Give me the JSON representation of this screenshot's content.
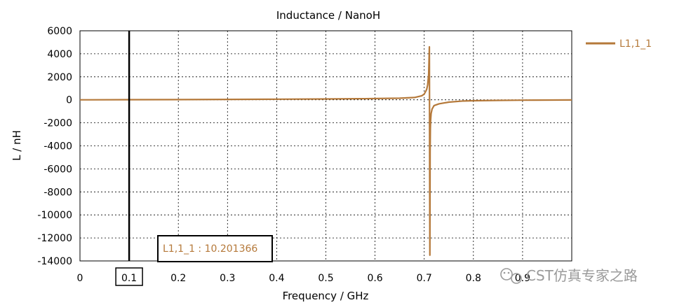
{
  "chart_data": {
    "type": "line",
    "title": "Inductance / NanoH",
    "xlabel": "Frequency / GHz",
    "ylabel": "L / nH",
    "xlim": [
      0,
      1.0
    ],
    "ylim": [
      -14000,
      6000
    ],
    "xticks": [
      "0",
      "0.1",
      "0.2",
      "0.3",
      "0.4",
      "0.5",
      "0.6",
      "0.7",
      "0.8",
      "0.9"
    ],
    "yticks": [
      "6000",
      "4000",
      "2000",
      "0",
      "-2000",
      "-4000",
      "-6000",
      "-8000",
      "-10000",
      "-12000",
      "-14000"
    ],
    "grid": true,
    "legend_position": "right",
    "series": [
      {
        "name": "L1,1_1",
        "color": "#b5793a",
        "x": [
          0,
          0.1,
          0.2,
          0.3,
          0.4,
          0.5,
          0.58,
          0.6,
          0.65,
          0.68,
          0.695,
          0.7,
          0.705,
          0.707,
          0.709,
          0.7105,
          0.7115,
          0.712,
          0.7125,
          0.713,
          0.714,
          0.716,
          0.72,
          0.73,
          0.75,
          0.78,
          0.8,
          0.85,
          0.9,
          1.0
        ],
        "y": [
          0,
          10.2,
          20,
          35,
          55,
          75,
          100,
          110,
          140,
          200,
          350,
          500,
          900,
          1300,
          2200,
          4600,
          -13500,
          -4500,
          -2500,
          -1800,
          -1200,
          -800,
          -500,
          -350,
          -200,
          -100,
          -80,
          -50,
          -30,
          -10
        ]
      }
    ],
    "marker": {
      "x": 0.1,
      "x_label": "0.1",
      "text": "L1,1_1 : 10.201366"
    }
  },
  "watermark": {
    "text": "CST仿真专家之路",
    "icon": "wechat-icon"
  }
}
